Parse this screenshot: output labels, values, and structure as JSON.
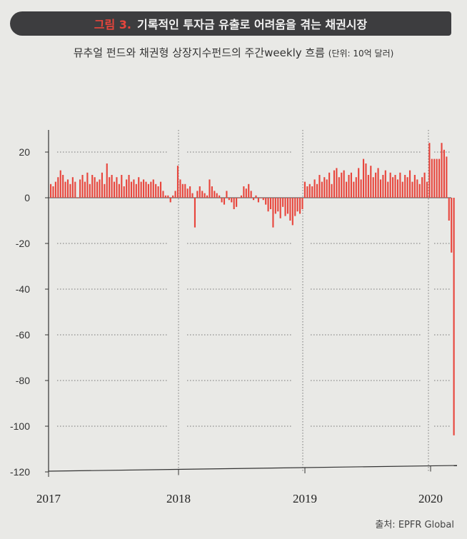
{
  "header": {
    "figure_label": "그림 3.",
    "title": "기록적인 투자금 유출로 어려움을 겪는 채권시장",
    "subtitle": "뮤추얼 펀드와 채권형 상장지수펀드의 주간weekly 흐름",
    "unit": "(단위: 10억 달러)"
  },
  "source": "출처: EPFR Global",
  "colors": {
    "bar": "#e8453c",
    "banner": "#3d3d3f",
    "accent": "#e8453c"
  },
  "chart_data": {
    "type": "bar",
    "title": "뮤추얼 펀드와 채권형 상장지수펀드의 주간weekly 흐름",
    "ylabel": "",
    "xlabel": "",
    "ylim": [
      -120,
      30
    ],
    "yticks": [
      20,
      0,
      -20,
      -40,
      -60,
      -80,
      -100,
      -120
    ],
    "ytick_labels": [
      "20",
      "0",
      "-20",
      "-40",
      "-60",
      "-80",
      "-100",
      "-120"
    ],
    "x_labels": [
      "2017",
      "2018",
      "2019",
      "2020"
    ],
    "grid": "horizontal dotted",
    "series": [
      {
        "values": [
          6,
          5,
          7,
          9,
          12,
          10,
          7,
          8,
          6,
          9,
          7,
          0,
          8,
          10,
          7,
          11,
          6,
          10,
          9,
          7,
          8,
          11,
          6,
          15,
          9,
          10,
          7,
          9,
          6,
          10,
          5,
          8,
          10,
          7,
          8,
          6,
          9,
          7,
          8,
          7,
          6,
          7,
          8,
          6,
          5,
          7,
          3,
          1,
          1,
          -2,
          1,
          3,
          14,
          8,
          6,
          6,
          4,
          5,
          2,
          -13,
          3,
          5,
          3,
          2,
          1,
          8,
          5,
          3,
          2,
          1,
          -2,
          -3,
          3,
          -1,
          -2,
          -5,
          -4,
          0,
          1,
          5,
          4,
          6,
          3,
          -1,
          1,
          -2,
          0,
          -1,
          -3,
          -6,
          -5,
          -13,
          -7,
          -6,
          -9,
          -4,
          -8,
          -7,
          -10,
          -12,
          -8,
          -6,
          -7,
          -5,
          7,
          5,
          6,
          5,
          8,
          6,
          10,
          7,
          9,
          8,
          11,
          6,
          12,
          13,
          9,
          11,
          12,
          7,
          10,
          11,
          7,
          9,
          13,
          8,
          17,
          15,
          10,
          14,
          9,
          11,
          13,
          8,
          10,
          12,
          7,
          11,
          9,
          10,
          8,
          11,
          7,
          10,
          9,
          12,
          7,
          10,
          8,
          6,
          9,
          11,
          7,
          24,
          17,
          17,
          17,
          17,
          24,
          21,
          18,
          -10,
          -24,
          -104
        ]
      }
    ]
  }
}
